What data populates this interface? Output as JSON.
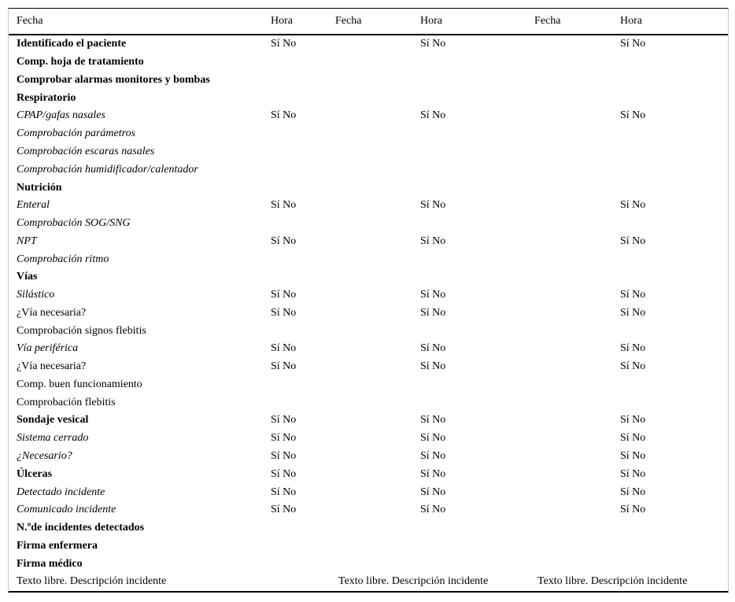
{
  "table": {
    "headers": [
      {
        "label": "Fecha"
      },
      {
        "label": "Hora"
      },
      {
        "label": "Fecha"
      },
      {
        "label": "Hora"
      },
      {
        "label": "Fecha"
      },
      {
        "label": "Hora"
      }
    ],
    "si_no_label": "Sí No",
    "rows": [
      {
        "label": "Identificado el paciente",
        "style": "bold",
        "si_no": true
      },
      {
        "label": "Comp. hoja de tratamiento",
        "style": "bold",
        "si_no": false
      },
      {
        "label": "Comprobar alarmas monitores y bombas",
        "style": "bold",
        "si_no": false
      },
      {
        "label": "Respiratorio",
        "style": "bold",
        "si_no": false
      },
      {
        "label": "CPAP/gafas nasales",
        "style": "italic",
        "si_no": true
      },
      {
        "label": "Comprobación parámetros",
        "style": "italic",
        "si_no": false
      },
      {
        "label": "Comprobación escaras nasales",
        "style": "italic",
        "si_no": false
      },
      {
        "label": "Comprobación humidificador/calentador",
        "style": "italic",
        "si_no": false
      },
      {
        "label": "Nutrición",
        "style": "bold",
        "si_no": false
      },
      {
        "label": "Enteral",
        "style": "italic",
        "si_no": true
      },
      {
        "label": "Comprobación SOG/SNG",
        "style": "italic",
        "si_no": false
      },
      {
        "label": "NPT",
        "style": "italic",
        "si_no": true
      },
      {
        "label": "Comprobación ritmo",
        "style": "italic",
        "si_no": false
      },
      {
        "label": "Vías",
        "style": "bold",
        "si_no": false
      },
      {
        "label": "Silástico",
        "style": "italic",
        "si_no": true
      },
      {
        "label": "¿Vía necesaria?",
        "style": "regular",
        "si_no": true
      },
      {
        "label": "Comprobación signos flebitis",
        "style": "regular",
        "si_no": false
      },
      {
        "label": "Vía periférica",
        "style": "italic",
        "si_no": true
      },
      {
        "label": "¿Vía necesaria?",
        "style": "regular",
        "si_no": true
      },
      {
        "label": "Comp. buen funcionamiento",
        "style": "regular",
        "si_no": false
      },
      {
        "label": "Comprobación flebitis",
        "style": "regular",
        "si_no": false
      },
      {
        "label": "Sondaje vesical",
        "style": "bold",
        "si_no": true
      },
      {
        "label": "Sistema cerrado",
        "style": "italic",
        "si_no": true
      },
      {
        "label": "¿Necesario?",
        "style": "italic",
        "si_no": true
      },
      {
        "label": "Úlceras",
        "style": "bold",
        "si_no": true
      },
      {
        "label": "Detectado incidente",
        "style": "italic",
        "si_no": true
      },
      {
        "label": "Comunicado incidente",
        "style": "italic",
        "si_no": true
      },
      {
        "label": "N.ºde incidentes detectados",
        "style": "bold",
        "si_no": false
      },
      {
        "label": "Firma enfermera",
        "style": "bold",
        "si_no": false
      },
      {
        "label": "Firma médico",
        "style": "bold",
        "si_no": false
      }
    ],
    "free_text_row": {
      "texts": [
        "Texto libre. Descripción incidente",
        "Texto libre. Descripción incidente",
        "Texto libre. Descripción incidente"
      ]
    }
  },
  "colors": {
    "text": "#000000",
    "rule": "#000000",
    "frame": "#c9c9c9",
    "background": "#ffffff"
  }
}
